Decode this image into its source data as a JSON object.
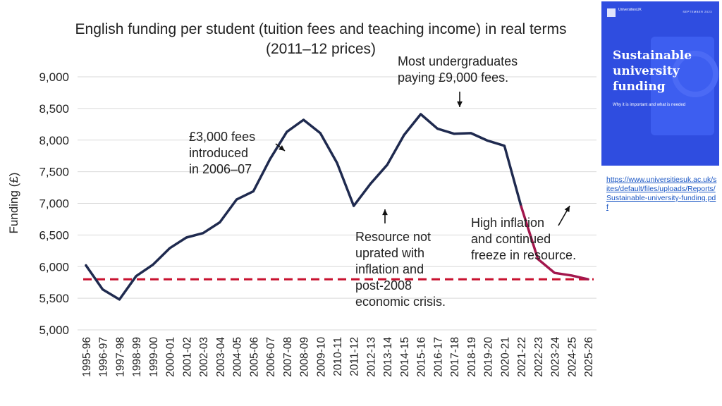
{
  "chart_data": {
    "type": "line",
    "title": "English funding per student (tuition fees and teaching income) in real terms (2011–12 prices)",
    "title_lines": [
      "English funding per student (tuition fees and teaching income) in real terms",
      "(2011–12 prices)"
    ],
    "xlabel": "",
    "ylabel": "Funding (£)",
    "ylim": [
      5000,
      9000
    ],
    "yticks": [
      5000,
      5500,
      6000,
      6500,
      7000,
      7500,
      8000,
      8500,
      9000
    ],
    "ytick_labels": [
      "5,000",
      "5,500",
      "6,000",
      "6,500",
      "7,000",
      "7,500",
      "8,000",
      "8,500",
      "9,000"
    ],
    "grid": true,
    "categories": [
      "1995-96",
      "1996-97",
      "1997-98",
      "1998-99",
      "1999-00",
      "2000-01",
      "2001-02",
      "2002-03",
      "2003-04",
      "2004-05",
      "2005-06",
      "2006-07",
      "2007-08",
      "2008-09",
      "2009-10",
      "2010-11",
      "2011-12",
      "2012-13",
      "2013-14",
      "2014-15",
      "2015-16",
      "2016-17",
      "2017-18",
      "2018-19",
      "2019-20",
      "2020-21",
      "2021-22",
      "2022-23",
      "2023-24",
      "2024-25",
      "2025-26"
    ],
    "series": [
      {
        "values": [
          6020,
          5640,
          5480,
          5850,
          6030,
          6290,
          6460,
          6530,
          6700,
          7060,
          7190,
          7700,
          8130,
          8320,
          8110,
          7640,
          6960,
          7310,
          7610,
          8080,
          8410,
          8180,
          8100,
          8110,
          7990,
          7910,
          6950,
          null,
          null,
          null,
          null
        ],
        "color": "#1f2a4f"
      },
      {
        "values": [
          null,
          null,
          null,
          null,
          null,
          null,
          null,
          null,
          null,
          null,
          null,
          null,
          null,
          null,
          null,
          null,
          null,
          null,
          null,
          null,
          null,
          null,
          null,
          null,
          null,
          null,
          6950,
          6120,
          5900,
          5860,
          5800
        ],
        "color": "#a3174d"
      }
    ],
    "reference_line": {
      "value": 5800,
      "color": "#c8102e",
      "style": "dashed"
    },
    "annotations": [
      {
        "lines": [
          "£3,000 fees",
          "introduced",
          "in 2006–07"
        ]
      },
      {
        "lines": [
          "Most undergraduates",
          "paying £9,000 fees."
        ]
      },
      {
        "lines": [
          "Resource not",
          "uprated with",
          "inflation and",
          "post-2008",
          "economic crisis."
        ]
      },
      {
        "lines": [
          "High inflation",
          "and continued",
          "freeze in resource."
        ]
      }
    ]
  },
  "report": {
    "title_lines": [
      "Sustainable",
      "university",
      "funding"
    ],
    "subtitle": "Why it is important and what is needed",
    "publisher": "UniversitiesUK",
    "date": "SEPTEMBER 2023",
    "colors": {
      "background": "#2f4de0"
    }
  },
  "link": {
    "text": "https://www.universitiesuk.ac.uk/sites/default/files/uploads/Reports/Sustainable-university-funding.pdf"
  }
}
